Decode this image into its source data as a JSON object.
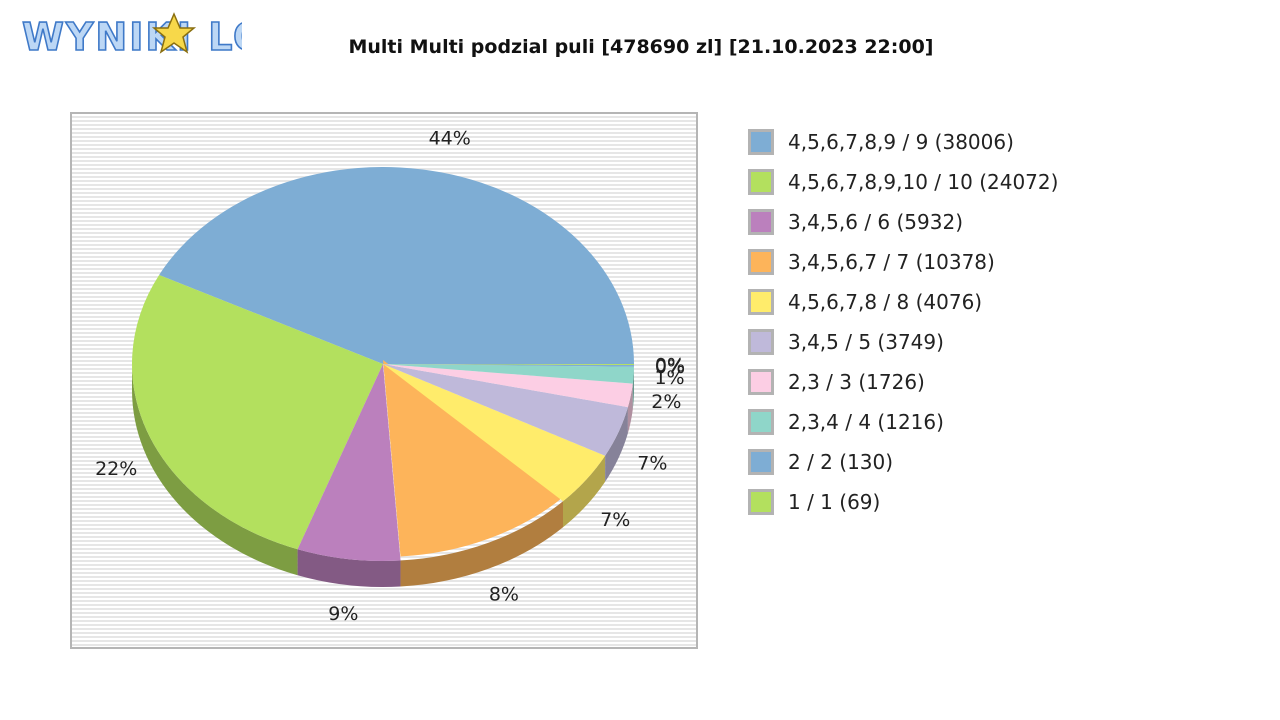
{
  "logo": {
    "text": "WYNIKI LOTTO"
  },
  "chart_data": {
    "type": "pie",
    "title": "Multi Multi podzial puli [478690 zl] [21.10.2023 22:00]",
    "slices": [
      {
        "label": "4,5,6,7,8,9 / 9 (38006)",
        "value": 38006,
        "percent_label": "44%",
        "color": "#7eadd4"
      },
      {
        "label": "4,5,6,7,8,9,10 / 10 (24072)",
        "value": 24072,
        "percent_label": "22%",
        "color": "#b3e05e"
      },
      {
        "label": "3,4,5,6 / 6 (5932)",
        "value": 5932,
        "percent_label": "9%",
        "color": "#bb80bd"
      },
      {
        "label": "3,4,5,6,7 / 7 (10378)",
        "value": 10378,
        "percent_label": "8%",
        "color": "#fdb45a"
      },
      {
        "label": "4,5,6,7,8 / 8 (4076)",
        "value": 4076,
        "percent_label": "7%",
        "color": "#ffec6b"
      },
      {
        "label": "3,4,5 / 5 (3749)",
        "value": 3749,
        "percent_label": "7%",
        "color": "#bfb9da"
      },
      {
        "label": "2,3 / 3 (1726)",
        "value": 1726,
        "percent_label": "2%",
        "color": "#fcceе4"
      },
      {
        "label": "2,3,4 / 4 (1216)",
        "value": 1216,
        "percent_label": "1%",
        "color": "#8fd6c9"
      },
      {
        "label": "2 / 2 (130)",
        "value": 130,
        "percent_label": "0%",
        "color": "#7eadd4"
      },
      {
        "label": "1 / 1 (69)",
        "value": 69,
        "percent_label": "0%",
        "color": "#b3e05e"
      }
    ],
    "legend_position": "right",
    "background": "horizontal-stripes"
  }
}
